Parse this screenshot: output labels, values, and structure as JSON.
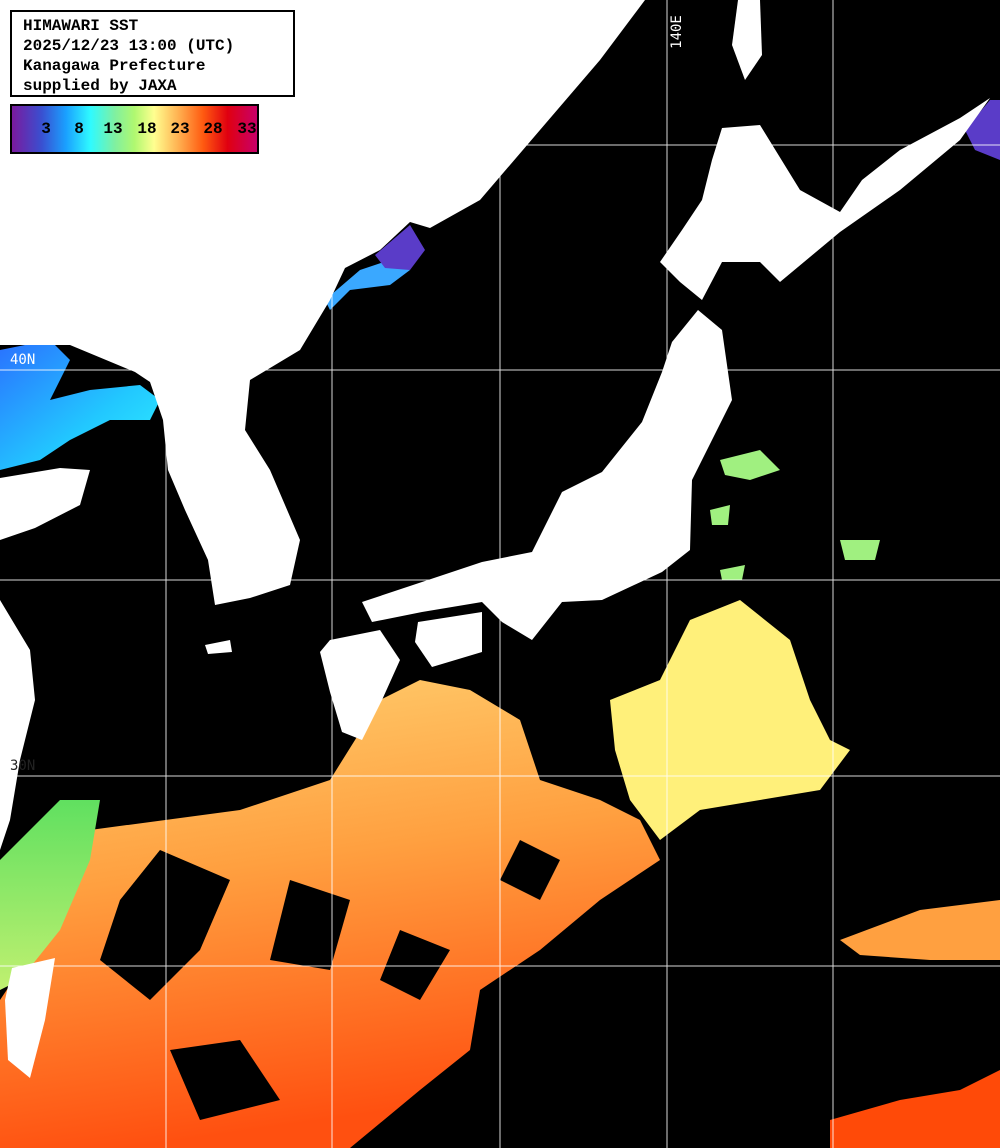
{
  "header": {
    "lines": [
      "HIMAWARI SST",
      "2025/12/23 13:00 (UTC)",
      "Kanagawa Prefecture",
      "supplied by JAXA"
    ]
  },
  "colorbar": {
    "unit_hint": "",
    "ticks": [
      "3",
      "8",
      "13",
      "18",
      "23",
      "28",
      "33"
    ],
    "colors": [
      "#7a1a9e",
      "#3a4fd0",
      "#1aa0ff",
      "#2ffaff",
      "#b0f870",
      "#ffff90",
      "#ffb050",
      "#ff5a10",
      "#e00010",
      "#c8006a"
    ]
  },
  "grid_labels": {
    "lon_140": "140E",
    "lat_40": "40N",
    "lat_30": "30N"
  },
  "colors": {
    "land": "#ffffff",
    "no_data": "#000000",
    "grid": "#ffffff"
  }
}
